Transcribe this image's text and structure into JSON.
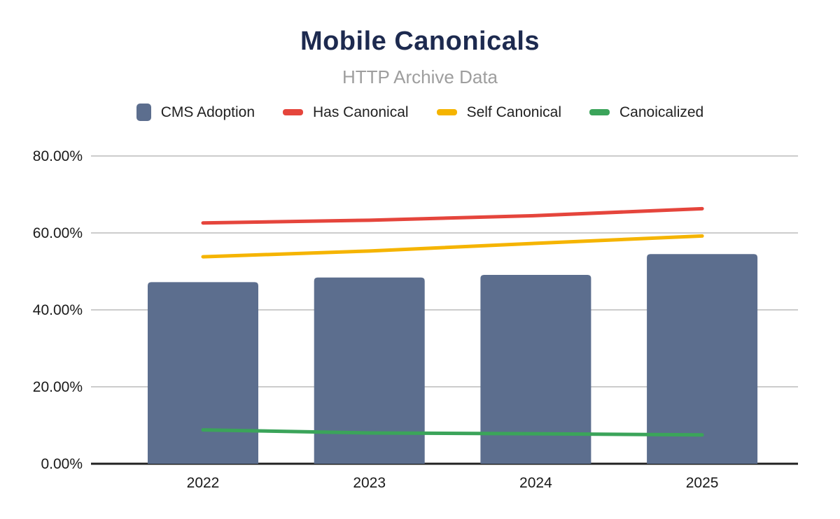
{
  "header": {
    "title": "Mobile Canonicals",
    "subtitle": "HTTP Archive Data"
  },
  "legend": {
    "items": [
      {
        "label": "CMS Adoption",
        "color": "#5c6e8e",
        "marker": "square"
      },
      {
        "label": "Has Canonical",
        "color": "#e5453c",
        "marker": "line"
      },
      {
        "label": "Self Canonical",
        "color": "#f5b400",
        "marker": "line"
      },
      {
        "label": "Canoicalized",
        "color": "#3ba45a",
        "marker": "line"
      }
    ]
  },
  "chart_data": {
    "type": "combo",
    "title": "Mobile Canonicals",
    "subtitle": "HTTP Archive Data",
    "categories": [
      "2022",
      "2023",
      "2024",
      "2025"
    ],
    "series": [
      {
        "name": "CMS Adoption",
        "type": "bar",
        "color": "#5c6e8e",
        "values": [
          47.2,
          48.4,
          49.1,
          54.5
        ]
      },
      {
        "name": "Has Canonical",
        "type": "line",
        "color": "#e5453c",
        "values": [
          62.6,
          63.3,
          64.5,
          66.3
        ]
      },
      {
        "name": "Self Canonical",
        "type": "line",
        "color": "#f5b400",
        "values": [
          53.8,
          55.3,
          57.3,
          59.2
        ]
      },
      {
        "name": "Canoicalized",
        "type": "line",
        "color": "#3ba45a",
        "values": [
          8.8,
          8.0,
          7.8,
          7.5
        ]
      }
    ],
    "xlabel": "",
    "ylabel": "",
    "ylim": [
      0,
      80
    ],
    "yticks": [
      "0.00%",
      "20.00%",
      "40.00%",
      "60.00%",
      "80.00%"
    ],
    "grid": true,
    "legend_position": "top",
    "colors": {
      "gridline": "#cccccc",
      "axis_line": "#212121",
      "title": "#1d2a4f",
      "subtitle": "#9e9e9e",
      "background": "#ffffff"
    }
  }
}
